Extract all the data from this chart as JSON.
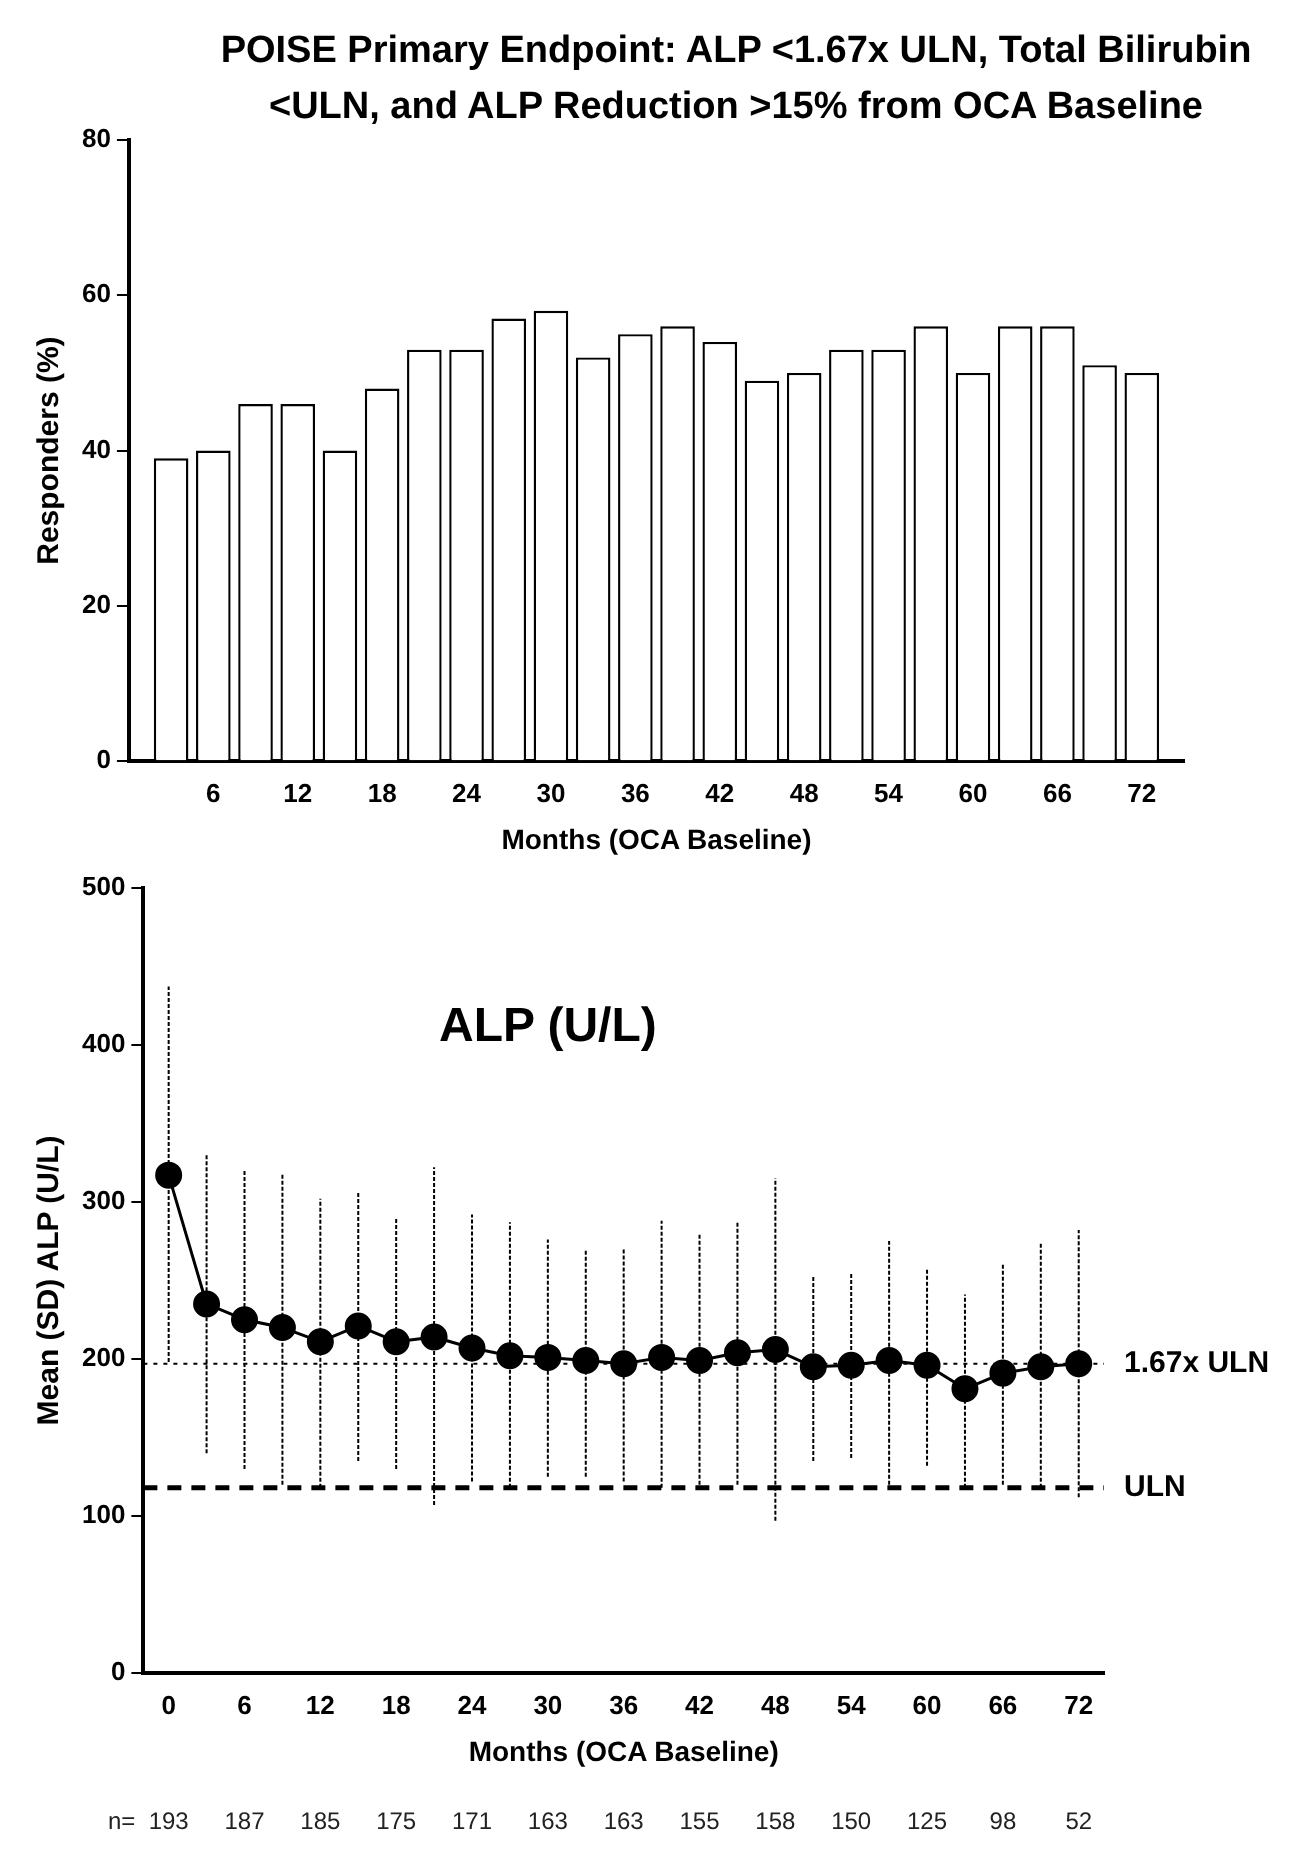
{
  "chart_data": [
    {
      "type": "bar",
      "title": "POISE Primary Endpoint: ALP <1.67x ULN, Total Bilirubin <ULN, and ALP Reduction >15% from OCA Baseline",
      "xlabel": "Months (OCA Baseline)",
      "ylabel": "Responders (%)",
      "x": [
        3,
        6,
        9,
        12,
        15,
        18,
        21,
        24,
        27,
        30,
        33,
        36,
        39,
        42,
        45,
        48,
        51,
        54,
        57,
        60,
        63,
        66,
        69,
        72
      ],
      "values": [
        39,
        40,
        46,
        46,
        40,
        48,
        53,
        53,
        57,
        58,
        52,
        55,
        56,
        54,
        49,
        50,
        53,
        53,
        56,
        50,
        56,
        56,
        51,
        50
      ],
      "color": "#ffffff",
      "xlim": [
        0,
        75
      ],
      "xticks": [
        6,
        12,
        18,
        24,
        30,
        36,
        42,
        48,
        54,
        60,
        66,
        72
      ],
      "ylim": [
        0,
        80
      ],
      "yticks": [
        0,
        20,
        40,
        60,
        80
      ],
      "grid": false,
      "legend": false
    },
    {
      "type": "line",
      "title": "ALP (U/L)",
      "xlabel": "Months (OCA Baseline)",
      "ylabel": "Mean (SD) ALP (U/L)",
      "x": [
        0,
        3,
        6,
        9,
        12,
        15,
        18,
        21,
        24,
        27,
        30,
        33,
        36,
        39,
        42,
        45,
        48,
        51,
        54,
        57,
        60,
        63,
        66,
        69,
        72
      ],
      "values": [
        317,
        235,
        225,
        220,
        211,
        221,
        211,
        214,
        207,
        202,
        201,
        199,
        197,
        201,
        199,
        204,
        206,
        195,
        196,
        199,
        196,
        181,
        191,
        195,
        197
      ],
      "errors": [
        [
          198,
          437
        ],
        [
          140,
          330
        ],
        [
          130,
          320
        ],
        [
          120,
          318
        ],
        [
          118,
          302
        ],
        [
          135,
          306
        ],
        [
          130,
          290
        ],
        [
          107,
          322
        ],
        [
          122,
          292
        ],
        [
          118,
          287
        ],
        [
          125,
          276
        ],
        [
          125,
          270
        ],
        [
          122,
          270
        ],
        [
          118,
          288
        ],
        [
          120,
          280
        ],
        [
          120,
          287
        ],
        [
          97,
          315
        ],
        [
          135,
          253
        ],
        [
          137,
          254
        ],
        [
          120,
          275
        ],
        [
          132,
          258
        ],
        [
          118,
          241
        ],
        [
          120,
          261
        ],
        [
          118,
          274
        ],
        [
          112,
          282
        ]
      ],
      "color": "#000000",
      "marker": "circle",
      "line_style": "solid",
      "xlim": [
        -2,
        74
      ],
      "xticks": [
        0,
        6,
        12,
        18,
        24,
        30,
        36,
        42,
        48,
        54,
        60,
        66,
        72
      ],
      "ylim": [
        0,
        500
      ],
      "yticks": [
        0,
        100,
        200,
        300,
        400,
        500
      ],
      "grid": false,
      "legend": false,
      "ref_lines": [
        {
          "axis": "y",
          "value": 197,
          "label": "1.67x ULN",
          "line_style": "dotted"
        },
        {
          "axis": "y",
          "value": 118,
          "label": "ULN",
          "line_style": "dashed"
        }
      ],
      "annotations": [
        "n=",
        "193",
        "187",
        "185",
        "175",
        "171",
        "163",
        "163",
        "155",
        "158",
        "150",
        "125",
        "98",
        "52"
      ]
    }
  ]
}
